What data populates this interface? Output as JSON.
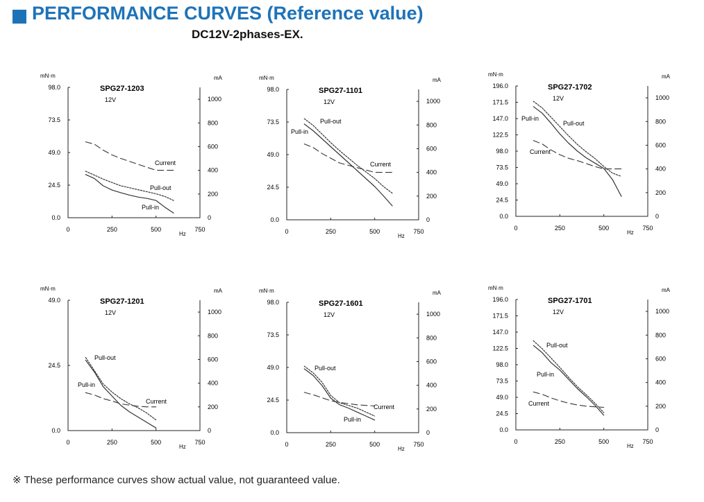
{
  "header": {
    "title": "PERFORMANCE CURVES (Reference value)",
    "subtitle": "DC12V-2phases-EX.",
    "accent_color": "#1e73b8"
  },
  "footnote": "※ These performance curves show actual value, not guaranteed value.",
  "chart_data": [
    {
      "type": "line",
      "title": "SPG27-1203",
      "subtitle": "12V",
      "xlabel": "Hz",
      "ylabel": "mN·m",
      "y2label": "mA",
      "xlim": [
        0,
        750
      ],
      "ylim": [
        0,
        98.0
      ],
      "y2lim": [
        0,
        1100
      ],
      "xticks": [
        "0",
        "250",
        "500",
        "750"
      ],
      "yticks": [
        "0.0",
        "24.5",
        "49.0",
        "73.5",
        "98.0"
      ],
      "y2ticks": [
        "0",
        "200",
        "400",
        "600",
        "800",
        "1000"
      ],
      "series": [
        {
          "name": "Pull-in",
          "axis": "left",
          "style": "solid",
          "x": [
            100,
            150,
            200,
            250,
            300,
            350,
            400,
            450,
            500,
            550,
            600
          ],
          "y": [
            32.5,
            29.5,
            24.0,
            20.8,
            18.8,
            17.0,
            15.5,
            14.5,
            13.0,
            8.0,
            3.5
          ]
        },
        {
          "name": "Pull-out",
          "axis": "left",
          "style": "dotted",
          "x": [
            100,
            150,
            200,
            250,
            300,
            350,
            400,
            450,
            500,
            550,
            600
          ],
          "y": [
            35.0,
            32.0,
            29.0,
            26.5,
            24.0,
            22.5,
            21.0,
            19.5,
            18.0,
            16.0,
            13.0
          ]
        },
        {
          "name": "Current",
          "axis": "right",
          "style": "dashed",
          "x": [
            100,
            150,
            200,
            250,
            300,
            350,
            400,
            450,
            500,
            550,
            600
          ],
          "y": [
            640,
            620,
            570,
            530,
            500,
            475,
            450,
            425,
            400,
            400,
            400
          ]
        }
      ]
    },
    {
      "type": "line",
      "title": "SPG27-1101",
      "subtitle": "12V",
      "xlabel": "Hz",
      "ylabel": "mN·m",
      "y2label": "mA",
      "xlim": [
        0,
        750
      ],
      "ylim": [
        0,
        98.0
      ],
      "y2lim": [
        0,
        1100
      ],
      "xticks": [
        "0",
        "250",
        "500",
        "750"
      ],
      "yticks": [
        "0.0",
        "24.5",
        "49.0",
        "73.5",
        "98.0"
      ],
      "y2ticks": [
        "0",
        "200",
        "400",
        "600",
        "800",
        "1000"
      ],
      "series": [
        {
          "name": "Pull-in",
          "axis": "left",
          "style": "solid",
          "x": [
            100,
            150,
            200,
            250,
            300,
            350,
            400,
            450,
            500,
            550,
            600
          ],
          "y": [
            72.0,
            67.0,
            61.0,
            55.0,
            49.0,
            43.0,
            37.0,
            31.0,
            25.0,
            18.0,
            10.5
          ]
        },
        {
          "name": "Pull-out",
          "axis": "left",
          "style": "dotted",
          "x": [
            100,
            150,
            200,
            250,
            300,
            350,
            400,
            450,
            500,
            550,
            600
          ],
          "y": [
            76.0,
            71.0,
            64.5,
            58.0,
            52.0,
            46.5,
            41.0,
            36.0,
            31.0,
            25.0,
            20.0
          ]
        },
        {
          "name": "Current",
          "axis": "right",
          "style": "dashed",
          "x": [
            100,
            150,
            200,
            250,
            300,
            350,
            400,
            450,
            500,
            550,
            600
          ],
          "y": [
            640,
            610,
            560,
            520,
            480,
            460,
            440,
            420,
            400,
            400,
            400
          ]
        }
      ]
    },
    {
      "type": "line",
      "title": "SPG27-1702",
      "subtitle": "12V",
      "xlabel": "Hz",
      "ylabel": "mN·m",
      "y2label": "mA",
      "xlim": [
        0,
        750
      ],
      "ylim": [
        0,
        196.0
      ],
      "y2lim": [
        0,
        1100
      ],
      "xticks": [
        "0",
        "250",
        "500",
        "750"
      ],
      "yticks": [
        "0.0",
        "24.5",
        "49.0",
        "73.5",
        "98.0",
        "122.5",
        "147.0",
        "171.5",
        "196.0"
      ],
      "y2ticks": [
        "0",
        "200",
        "400",
        "600",
        "800",
        "1000"
      ],
      "series": [
        {
          "name": "Pull-in",
          "axis": "left",
          "style": "solid",
          "x": [
            100,
            150,
            200,
            250,
            300,
            350,
            400,
            450,
            500,
            550,
            600
          ],
          "y": [
            165.0,
            155.0,
            140.0,
            124.0,
            110.0,
            98.0,
            88.0,
            80.0,
            72.0,
            55.0,
            30.0
          ]
        },
        {
          "name": "Pull-out",
          "axis": "left",
          "style": "dotted",
          "x": [
            100,
            150,
            200,
            250,
            300,
            350,
            400,
            450,
            500,
            550,
            600
          ],
          "y": [
            173.0,
            163.0,
            149.0,
            135.0,
            121.0,
            108.0,
            97.0,
            87.0,
            75.0,
            65.0,
            60.0
          ]
        },
        {
          "name": "Current",
          "axis": "right",
          "style": "dashed",
          "x": [
            100,
            150,
            200,
            250,
            300,
            350,
            400,
            450,
            500,
            550,
            600
          ],
          "y": [
            640,
            610,
            560,
            520,
            490,
            470,
            445,
            420,
            400,
            400,
            400
          ]
        }
      ]
    },
    {
      "type": "line",
      "title": "SPG27-1201",
      "subtitle": "12V",
      "xlabel": "Hz",
      "ylabel": "mN·m",
      "y2label": "mA",
      "xlim": [
        0,
        750
      ],
      "ylim": [
        0,
        49.0
      ],
      "y2lim": [
        0,
        1100
      ],
      "xticks": [
        "0",
        "250",
        "500",
        "750"
      ],
      "yticks": [
        "0.0",
        "24.5",
        "49.0"
      ],
      "y2ticks": [
        "0",
        "200",
        "400",
        "600",
        "800",
        "1000"
      ],
      "series": [
        {
          "name": "Pull-in",
          "axis": "left",
          "style": "solid",
          "x": [
            100,
            150,
            200,
            250,
            300,
            350,
            400,
            450,
            500
          ],
          "y": [
            26.5,
            22.0,
            16.5,
            13.0,
            9.5,
            7.0,
            5.0,
            3.0,
            1.0
          ]
        },
        {
          "name": "Pull-out",
          "axis": "left",
          "style": "dotted",
          "x": [
            100,
            150,
            200,
            250,
            300,
            350,
            400,
            450,
            500
          ],
          "y": [
            27.5,
            22.5,
            17.5,
            14.5,
            12.0,
            10.0,
            8.5,
            6.5,
            4.0
          ]
        },
        {
          "name": "Current",
          "axis": "right",
          "style": "dashed",
          "x": [
            100,
            150,
            200,
            250,
            300,
            350,
            400,
            450,
            500
          ],
          "y": [
            320,
            300,
            270,
            250,
            225,
            215,
            205,
            200,
            200
          ]
        }
      ]
    },
    {
      "type": "line",
      "title": "SPG27-1601",
      "subtitle": "12V",
      "xlabel": "Hz",
      "ylabel": "mN·m",
      "y2label": "mA",
      "xlim": [
        0,
        750
      ],
      "ylim": [
        0,
        98.0
      ],
      "y2lim": [
        0,
        1100
      ],
      "xticks": [
        "0",
        "250",
        "500",
        "750"
      ],
      "yticks": [
        "0.0",
        "24.5",
        "49.0",
        "73.5",
        "98.0"
      ],
      "y2ticks": [
        "0",
        "200",
        "400",
        "600",
        "800",
        "1000"
      ],
      "series": [
        {
          "name": "Pull-in",
          "axis": "left",
          "style": "solid",
          "x": [
            100,
            150,
            200,
            250,
            300,
            350,
            400,
            450,
            500
          ],
          "y": [
            48.0,
            43.0,
            35.5,
            26.0,
            21.0,
            18.5,
            15.5,
            12.5,
            9.5
          ]
        },
        {
          "name": "Pull-out",
          "axis": "left",
          "style": "dotted",
          "x": [
            100,
            150,
            200,
            250,
            300,
            350,
            400,
            450,
            500
          ],
          "y": [
            50.0,
            45.0,
            38.0,
            28.0,
            22.5,
            20.5,
            18.5,
            15.5,
            12.5
          ]
        },
        {
          "name": "Current",
          "axis": "right",
          "style": "dashed",
          "x": [
            100,
            150,
            200,
            250,
            300,
            350,
            400,
            450,
            500
          ],
          "y": [
            340,
            320,
            295,
            270,
            255,
            245,
            235,
            230,
            225
          ]
        }
      ]
    },
    {
      "type": "line",
      "title": "SPG27-1701",
      "subtitle": "12V",
      "xlabel": "Hz",
      "ylabel": "mN·m",
      "y2label": "mA",
      "xlim": [
        0,
        750
      ],
      "ylim": [
        0,
        196.0
      ],
      "y2lim": [
        0,
        1100
      ],
      "xticks": [
        "0",
        "250",
        "500",
        "750"
      ],
      "yticks": [
        "0.0",
        "24.5",
        "49.0",
        "73.5",
        "98.0",
        "122.5",
        "147.0",
        "171.5",
        "196.0"
      ],
      "y2ticks": [
        "0",
        "200",
        "400",
        "600",
        "800",
        "1000"
      ],
      "series": [
        {
          "name": "Pull-in",
          "axis": "left",
          "style": "solid",
          "x": [
            100,
            150,
            200,
            250,
            300,
            350,
            400,
            450,
            500
          ],
          "y": [
            127.0,
            116.0,
            101.0,
            90.0,
            76.0,
            62.0,
            50.0,
            37.0,
            22.0
          ]
        },
        {
          "name": "Pull-out",
          "axis": "left",
          "style": "dotted",
          "x": [
            100,
            150,
            200,
            250,
            300,
            350,
            400,
            450,
            500
          ],
          "y": [
            134.0,
            122.0,
            108.0,
            94.0,
            79.0,
            65.0,
            53.0,
            40.0,
            26.0
          ]
        },
        {
          "name": "Current",
          "axis": "right",
          "style": "dashed",
          "x": [
            100,
            150,
            200,
            250,
            300,
            350,
            400,
            450,
            500
          ],
          "y": [
            320,
            300,
            270,
            245,
            225,
            210,
            200,
            195,
            190
          ]
        }
      ]
    }
  ]
}
